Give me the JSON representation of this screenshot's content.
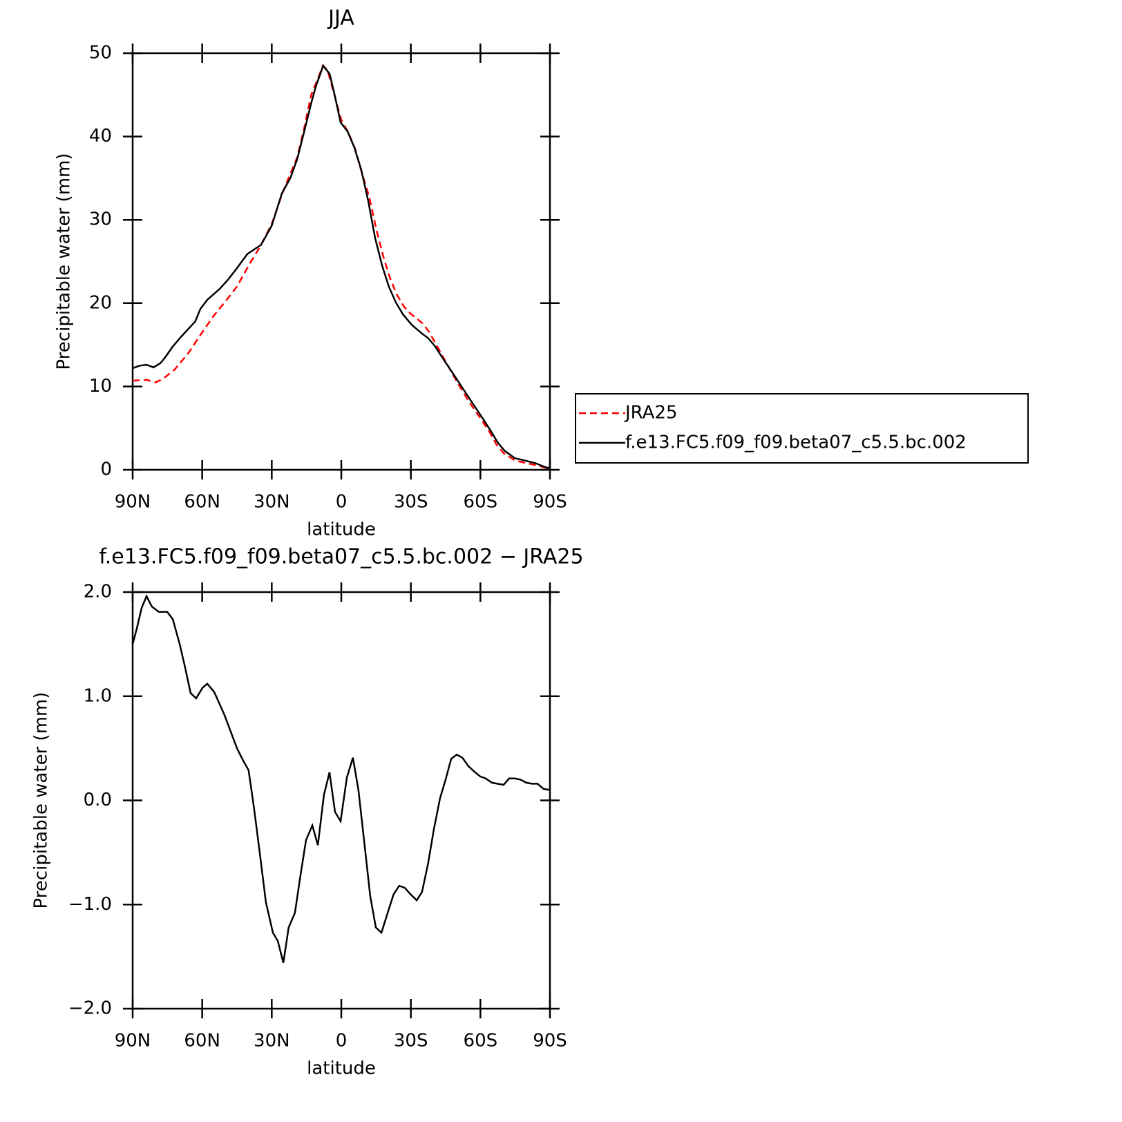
{
  "chart_data": [
    {
      "type": "line",
      "title": "JJA",
      "xlabel": "latitude",
      "ylabel": "Precipitable water (mm)",
      "xlim": [
        90,
        -90
      ],
      "ylim": [
        0,
        50
      ],
      "xticks": [
        {
          "value": 90,
          "label": "90N"
        },
        {
          "value": 60,
          "label": "60N"
        },
        {
          "value": 30,
          "label": "30N"
        },
        0,
        {
          "value": -30,
          "label": "30S"
        },
        {
          "value": -60,
          "label": "60S"
        },
        {
          "value": -90,
          "label": "90S"
        }
      ],
      "yticks": [
        0,
        10,
        20,
        30,
        40,
        50
      ],
      "legend": "outside right",
      "series": [
        {
          "name": "JRA25",
          "color": "#ff0000",
          "line_style": "dashed",
          "x": [
            90,
            84,
            80,
            77,
            72,
            66,
            60,
            55,
            50,
            45,
            40,
            35,
            30,
            25,
            22,
            19,
            16,
            13,
            10,
            8,
            6,
            4,
            2,
            0,
            -3,
            -6,
            -9,
            -12,
            -15,
            -18,
            -21,
            -24,
            -27,
            -30,
            -35,
            -38,
            -41,
            -45,
            -50,
            -55,
            -60,
            -64,
            -67,
            -70,
            -75,
            -80,
            -85,
            -90
          ],
          "values": [
            10.7,
            10.8,
            10.5,
            10.9,
            12,
            14,
            16.5,
            18.5,
            20.2,
            22,
            24.5,
            26.8,
            29.5,
            33.5,
            35.5,
            37.5,
            41,
            45,
            47,
            48.5,
            48,
            46,
            44,
            42,
            40.5,
            38.5,
            35.5,
            32.8,
            29,
            25.7,
            23,
            21,
            19.6,
            18.7,
            17.6,
            16.5,
            15,
            13,
            10.5,
            8.2,
            6.2,
            4.5,
            3,
            2,
            1.1,
            0.8,
            0.5,
            0.1
          ]
        },
        {
          "name": "f.e13.FC5.f09_f09.beta07_c5.5.bc.002",
          "color": "#000000",
          "line_style": "solid",
          "x": [
            90,
            87,
            84,
            81,
            78,
            75.7,
            72.7,
            69,
            66,
            63,
            60.8,
            57.8,
            52.5,
            48.9,
            45,
            40.5,
            34.6,
            30,
            25.6,
            22,
            19,
            16,
            13,
            11,
            7.8,
            5,
            2.7,
            0.3,
            -2.7,
            -5.6,
            -8.6,
            -11.6,
            -14.6,
            -17.6,
            -20.5,
            -23.5,
            -26.5,
            -30.4,
            -34.6,
            -37.5,
            -40.5,
            -43.5,
            -49.5,
            -55.4,
            -61.4,
            -64.4,
            -67.4,
            -70.4,
            -74.8,
            -79.3,
            -83.7,
            -88.2,
            -90
          ],
          "values": [
            12.2,
            12.5,
            12.6,
            12.3,
            12.8,
            13.6,
            14.8,
            16,
            16.9,
            17.8,
            19.3,
            20.4,
            21.7,
            22.8,
            24.2,
            25.9,
            27,
            29.3,
            33.2,
            35,
            37.3,
            40.6,
            44,
            46,
            48.5,
            47.5,
            44.8,
            41.7,
            40.6,
            38.7,
            36,
            32.3,
            27.8,
            24.5,
            22,
            20.1,
            18.7,
            17.4,
            16.4,
            15.8,
            14.8,
            13.5,
            11,
            8.5,
            6,
            4.7,
            3.3,
            2.3,
            1.4,
            1.1,
            0.8,
            0.3,
            0.2
          ]
        }
      ]
    },
    {
      "type": "line",
      "title": "f.e13.FC5.f09_f09.beta07_c5.5.bc.002 − JRA25",
      "xlabel": "latitude",
      "ylabel": "Precipitable water (mm)",
      "xlim": [
        90,
        -90
      ],
      "ylim": [
        -2,
        2
      ],
      "xticks": [
        {
          "value": 90,
          "label": "90N"
        },
        {
          "value": 60,
          "label": "60N"
        },
        {
          "value": 30,
          "label": "30N"
        },
        0,
        {
          "value": -30,
          "label": "30S"
        },
        {
          "value": -60,
          "label": "60S"
        },
        {
          "value": -90,
          "label": "90S"
        }
      ],
      "yticks": [
        {
          "value": -2,
          "label": "−2.0"
        },
        {
          "value": -1,
          "label": "−1.0"
        },
        {
          "value": 0,
          "label": "0.0"
        },
        {
          "value": 1,
          "label": "1.0"
        },
        {
          "value": 2,
          "label": "2.0"
        }
      ],
      "series": [
        {
          "color": "#000000",
          "line_style": "solid",
          "x": [
            90,
            88.2,
            86.1,
            84,
            81.7,
            78.7,
            75.1,
            72.7,
            69.7,
            67.4,
            65,
            62.6,
            59.9,
            57.8,
            54.8,
            50.4,
            45,
            42.3,
            40,
            37.6,
            35.2,
            32.5,
            29.5,
            27.4,
            25,
            22.7,
            20,
            17.6,
            15.2,
            12.5,
            10.1,
            7.5,
            5.1,
            2.7,
            0.3,
            -2.4,
            -5,
            -7.4,
            -9.8,
            -12.5,
            -14.9,
            -17.3,
            -20,
            -22.6,
            -25,
            -27.4,
            -29.8,
            -32.5,
            -34.8,
            -37.5,
            -39.9,
            -42.6,
            -45,
            -47.4,
            -49.8,
            -52.2,
            -54.8,
            -57.2,
            -59.9,
            -62.3,
            -65,
            -67.3,
            -70,
            -72.4,
            -74.8,
            -77.2,
            -79.8,
            -82.2,
            -84.6,
            -87.3,
            -90
          ],
          "values": [
            1.5,
            1.65,
            1.85,
            1.96,
            1.86,
            1.81,
            1.81,
            1.74,
            1.5,
            1.28,
            1.03,
            0.98,
            1.08,
            1.12,
            1.04,
            0.82,
            0.5,
            0.38,
            0.29,
            -0.08,
            -0.5,
            -0.98,
            -1.27,
            -1.35,
            -1.56,
            -1.22,
            -1.08,
            -0.72,
            -0.38,
            -0.24,
            -0.43,
            0.05,
            0.27,
            -0.11,
            -0.2,
            0.22,
            0.41,
            0.1,
            -0.38,
            -0.92,
            -1.22,
            -1.27,
            -1.08,
            -0.9,
            -0.82,
            -0.84,
            -0.9,
            -0.96,
            -0.88,
            -0.6,
            -0.28,
            0.02,
            0.2,
            0.4,
            0.44,
            0.41,
            0.33,
            0.28,
            0.23,
            0.21,
            0.17,
            0.16,
            0.15,
            0.21,
            0.21,
            0.2,
            0.17,
            0.16,
            0.16,
            0.11,
            0.1
          ]
        }
      ]
    }
  ]
}
